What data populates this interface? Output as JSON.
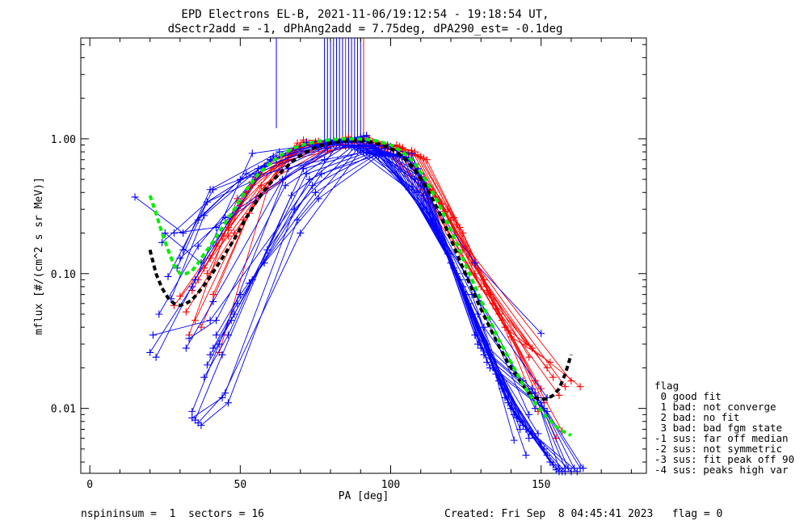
{
  "chart_data": {
    "type": "scatter",
    "title": [
      "EPD Electrons EL-B, 2021-11-06/19:12:54 - 19:18:54 UT,",
      "dSectr2add = -1, dPhAng2add = 7.75deg, dPA290_est=  -0.1deg"
    ],
    "xlabel": "PA [deg]",
    "ylabel": "mflux [#/(cm^2 s sr MeV)]",
    "xlim": [
      -3,
      185
    ],
    "ylim": [
      0.0033,
      5.6
    ],
    "yscale": "log",
    "x_ticks": [
      {
        "v": 0,
        "label": "0"
      },
      {
        "v": 50,
        "label": "50"
      },
      {
        "v": 100,
        "label": "100"
      },
      {
        "v": 150,
        "label": "150"
      }
    ],
    "y_ticks": [
      {
        "v": 0.01,
        "label": "0.01"
      },
      {
        "v": 0.1,
        "label": "0.10"
      },
      {
        "v": 1.0,
        "label": "1.00"
      }
    ],
    "colors": {
      "red": "#ff0000",
      "blue": "#0000ff",
      "green": "#00ee00",
      "black": "#000000"
    },
    "red_curves": [
      {
        "x": [
          28,
          46,
          69,
          90,
          107,
          118,
          131,
          146
        ],
        "y": [
          0.058,
          0.19,
          0.93,
          1.02,
          0.82,
          0.29,
          0.09,
          0.024
        ]
      },
      {
        "x": [
          30,
          46,
          70,
          91,
          108,
          120,
          133,
          148
        ],
        "y": [
          0.068,
          0.22,
          0.9,
          1.0,
          0.8,
          0.25,
          0.07,
          0.016
        ]
      },
      {
        "x": [
          34,
          50,
          71,
          89,
          106,
          119,
          132,
          150
        ],
        "y": [
          0.075,
          0.32,
          0.98,
          0.95,
          0.78,
          0.3,
          0.075,
          0.014
        ]
      },
      {
        "x": [
          36,
          52,
          72,
          88,
          105,
          117,
          130,
          152
        ],
        "y": [
          0.09,
          0.4,
          0.95,
          0.98,
          0.7,
          0.33,
          0.08,
          0.02
        ]
      },
      {
        "x": [
          38,
          54,
          73,
          87,
          104,
          116,
          128,
          147
        ],
        "y": [
          0.11,
          0.48,
          0.92,
          1.01,
          0.86,
          0.35,
          0.1,
          0.028
        ]
      },
      {
        "x": [
          40,
          56,
          74,
          86,
          103,
          115,
          127,
          154
        ],
        "y": [
          0.13,
          0.55,
          0.9,
          1.03,
          0.88,
          0.37,
          0.12,
          0.017
        ]
      },
      {
        "x": [
          32,
          48,
          68,
          92,
          109,
          121,
          134,
          156
        ],
        "y": [
          0.052,
          0.2,
          0.85,
          1.04,
          0.76,
          0.26,
          0.06,
          0.0125
        ]
      },
      {
        "x": [
          42,
          58,
          75,
          85,
          102,
          114,
          126,
          158
        ],
        "y": [
          0.16,
          0.63,
          0.95,
          1.0,
          0.9,
          0.4,
          0.14,
          0.0145
        ]
      },
      {
        "x": [
          44,
          60,
          76,
          84,
          101,
          113,
          125,
          160
        ],
        "y": [
          0.19,
          0.7,
          0.96,
          0.99,
          0.85,
          0.42,
          0.16,
          0.016
        ]
      },
      {
        "x": [
          35,
          51,
          67,
          93,
          110,
          122,
          135,
          151
        ],
        "y": [
          0.045,
          0.25,
          0.78,
          0.97,
          0.74,
          0.23,
          0.055,
          0.011
        ]
      },
      {
        "x": [
          37,
          53,
          66,
          94,
          111,
          123,
          136,
          149
        ],
        "y": [
          0.04,
          0.28,
          0.7,
          0.94,
          0.72,
          0.22,
          0.05,
          0.0095
        ]
      },
      {
        "x": [
          46,
          62,
          77,
          83,
          100,
          112,
          124,
          145
        ],
        "y": [
          0.21,
          0.66,
          0.88,
          0.97,
          0.83,
          0.38,
          0.15,
          0.03
        ]
      },
      {
        "x": [
          39,
          55,
          78,
          82,
          99,
          111,
          137,
          157
        ],
        "y": [
          0.1,
          0.52,
          0.9,
          0.93,
          0.8,
          0.36,
          0.045,
          0.0068
        ]
      },
      {
        "x": [
          41,
          57,
          79,
          81,
          98,
          110,
          138,
          163
        ],
        "y": [
          0.07,
          0.45,
          0.86,
          0.92,
          0.84,
          0.44,
          0.04,
          0.0145
        ]
      },
      {
        "x": [
          33,
          49,
          65,
          95,
          112,
          124,
          139,
          155
        ],
        "y": [
          0.035,
          0.36,
          0.75,
          0.91,
          0.7,
          0.2,
          0.038,
          0.006
        ]
      },
      {
        "x": [
          43,
          59,
          80,
          80,
          97,
          109,
          140,
          153
        ],
        "y": [
          0.026,
          0.42,
          0.82,
          0.9,
          0.88,
          0.5,
          0.034,
          0.022
        ]
      }
    ],
    "blue_curves": [
      {
        "x": [
          15,
          31,
          52,
          72,
          90,
          110,
          128,
          150
        ],
        "y": [
          0.37,
          0.2,
          0.55,
          0.94,
          1.03,
          0.45,
          0.12,
          0.036
        ]
      },
      {
        "x": [
          20,
          34,
          54,
          74,
          91,
          111,
          130,
          152
        ],
        "y": [
          0.026,
          0.08,
          0.78,
          0.9,
          1.05,
          0.38,
          0.06,
          0.012
        ]
      },
      {
        "x": [
          22,
          35,
          56,
          76,
          92,
          112,
          131,
          144
        ],
        "y": [
          0.024,
          0.09,
          0.6,
          0.86,
          1.06,
          0.3,
          0.04,
          0.016
        ]
      },
      {
        "x": [
          23,
          36,
          58,
          78,
          89,
          113,
          132,
          141
        ],
        "y": [
          0.05,
          0.16,
          0.62,
          0.92,
          1.0,
          0.28,
          0.03,
          0.0058
        ]
      },
      {
        "x": [
          25,
          37,
          60,
          80,
          88,
          109,
          129,
          145
        ],
        "y": [
          0.2,
          0.12,
          0.7,
          0.96,
          0.99,
          0.4,
          0.05,
          0.0045
        ]
      },
      {
        "x": [
          27,
          38,
          61,
          81,
          87,
          108,
          127,
          143
        ],
        "y": [
          0.065,
          0.27,
          0.74,
          0.97,
          0.98,
          0.5,
          0.07,
          0.007
        ]
      },
      {
        "x": [
          29,
          39,
          62,
          82,
          86,
          107,
          126,
          146
        ],
        "y": [
          0.11,
          0.34,
          0.72,
          0.95,
          0.96,
          0.44,
          0.09,
          0.009
        ]
      },
      {
        "x": [
          31,
          40,
          63,
          83,
          85,
          106,
          125,
          148
        ],
        "y": [
          0.15,
          0.42,
          0.8,
          0.94,
          0.95,
          0.42,
          0.1,
          0.01
        ]
      },
      {
        "x": [
          32,
          41,
          64,
          84,
          93,
          114,
          133,
          149
        ],
        "y": [
          0.028,
          0.062,
          0.5,
          0.9,
          0.9,
          0.25,
          0.025,
          0.0065
        ]
      },
      {
        "x": [
          33,
          42,
          65,
          85,
          94,
          115,
          134,
          150
        ],
        "y": [
          0.033,
          0.045,
          0.45,
          0.88,
          0.88,
          0.22,
          0.02,
          0.0055
        ]
      },
      {
        "x": [
          34,
          43,
          66,
          86,
          95,
          116,
          135,
          151
        ],
        "y": [
          0.0095,
          0.03,
          0.6,
          0.9,
          0.86,
          0.2,
          0.018,
          0.005
        ]
      },
      {
        "x": [
          35,
          44,
          67,
          87,
          96,
          117,
          136,
          152
        ],
        "y": [
          0.0082,
          0.025,
          0.38,
          0.87,
          0.84,
          0.18,
          0.016,
          0.0045
        ]
      },
      {
        "x": [
          36,
          45,
          68,
          88,
          97,
          118,
          137,
          153
        ],
        "y": [
          0.0078,
          0.013,
          0.3,
          0.86,
          0.82,
          0.16,
          0.014,
          0.004
        ]
      },
      {
        "x": [
          37,
          46,
          69,
          89,
          98,
          119,
          138,
          154
        ],
        "y": [
          0.0075,
          0.011,
          0.25,
          0.84,
          0.8,
          0.14,
          0.012,
          0.0038
        ]
      },
      {
        "x": [
          34,
          44,
          70,
          90,
          99,
          120,
          139,
          155
        ],
        "y": [
          0.0085,
          0.012,
          0.2,
          0.82,
          0.79,
          0.12,
          0.011,
          0.0035
        ]
      },
      {
        "x": [
          38,
          46,
          71,
          91,
          100,
          121,
          140,
          156
        ],
        "y": [
          0.017,
          0.035,
          0.6,
          0.8,
          0.78,
          0.11,
          0.01,
          0.0034
        ]
      },
      {
        "x": [
          39,
          47,
          72,
          92,
          101,
          122,
          141,
          157
        ],
        "y": [
          0.021,
          0.045,
          0.55,
          0.79,
          0.77,
          0.1,
          0.009,
          0.0034
        ]
      },
      {
        "x": [
          40,
          48,
          73,
          93,
          102,
          123,
          142,
          158
        ],
        "y": [
          0.025,
          0.05,
          0.5,
          0.78,
          0.76,
          0.09,
          0.0085,
          0.0034
        ]
      },
      {
        "x": [
          41,
          49,
          74,
          94,
          103,
          124,
          143,
          160
        ],
        "y": [
          0.028,
          0.06,
          0.45,
          0.77,
          0.75,
          0.08,
          0.008,
          0.0034
        ]
      },
      {
        "x": [
          42,
          50,
          75,
          95,
          104,
          125,
          144,
          162
        ],
        "y": [
          0.035,
          0.07,
          0.4,
          0.76,
          0.74,
          0.07,
          0.0075,
          0.0034
        ]
      },
      {
        "x": [
          53,
          58,
          76,
          96,
          105,
          126,
          145,
          146
        ],
        "y": [
          0.085,
          0.12,
          0.36,
          0.75,
          0.73,
          0.06,
          0.007,
          0.006
        ]
      },
      {
        "x": [
          54,
          59,
          77,
          97,
          106,
          127,
          146,
          147
        ],
        "y": [
          0.09,
          0.15,
          0.55,
          0.78,
          0.72,
          0.05,
          0.0068,
          0.0064
        ]
      },
      {
        "x": [
          36,
          50,
          78,
          98,
          107,
          128,
          147,
          158
        ],
        "y": [
          0.25,
          0.5,
          0.7,
          0.85,
          0.78,
          0.035,
          0.014,
          0.0036
        ]
      },
      {
        "x": [
          30,
          45,
          79,
          99,
          108,
          129,
          148,
          156
        ],
        "y": [
          0.13,
          0.26,
          0.85,
          0.9,
          0.65,
          0.03,
          0.013,
          0.0036
        ]
      },
      {
        "x": [
          26,
          41,
          80,
          100,
          109,
          130,
          149,
          159
        ],
        "y": [
          0.095,
          0.42,
          0.9,
          0.88,
          0.6,
          0.028,
          0.012,
          0.0036
        ]
      },
      {
        "x": [
          24,
          39,
          81,
          92,
          110,
          131,
          150,
          161
        ],
        "y": [
          0.17,
          0.34,
          0.92,
          0.95,
          0.55,
          0.025,
          0.011,
          0.0036
        ]
      },
      {
        "x": [
          28,
          42,
          82,
          91,
          111,
          132,
          151,
          163
        ],
        "y": [
          0.2,
          0.22,
          0.93,
          0.97,
          0.5,
          0.022,
          0.01,
          0.0036
        ]
      },
      {
        "x": [
          21,
          40,
          83,
          90,
          112,
          133,
          152,
          164
        ],
        "y": [
          0.035,
          0.045,
          0.94,
          0.96,
          0.45,
          0.02,
          0.0095,
          0.0036
        ]
      }
    ],
    "green_fit": {
      "x": [
        20,
        22,
        24,
        26,
        28,
        30,
        32,
        34,
        36,
        38,
        40,
        44,
        48,
        52,
        56,
        60,
        64,
        68,
        72,
        76,
        80,
        84,
        88,
        92,
        96,
        100,
        104,
        108,
        112,
        116,
        120,
        124,
        128,
        132,
        136,
        140,
        144,
        148,
        152,
        156,
        160
      ],
      "y": [
        0.38,
        0.28,
        0.2,
        0.15,
        0.115,
        0.1,
        0.1,
        0.105,
        0.12,
        0.14,
        0.16,
        0.22,
        0.3,
        0.42,
        0.55,
        0.66,
        0.77,
        0.86,
        0.92,
        0.96,
        0.985,
        1.0,
        1.0,
        0.99,
        0.96,
        0.9,
        0.8,
        0.66,
        0.48,
        0.33,
        0.21,
        0.13,
        0.08,
        0.05,
        0.032,
        0.022,
        0.015,
        0.011,
        0.0085,
        0.007,
        0.0063
      ]
    },
    "black_fit": {
      "x": [
        20,
        22,
        24,
        26,
        28,
        30,
        32,
        34,
        36,
        38,
        40,
        44,
        48,
        52,
        56,
        60,
        64,
        68,
        72,
        76,
        80,
        84,
        88,
        92,
        96,
        100,
        104,
        108,
        112,
        116,
        120,
        124,
        128,
        132,
        136,
        140,
        144,
        146,
        148,
        150,
        152,
        154,
        156,
        158,
        160
      ],
      "y": [
        0.15,
        0.1,
        0.078,
        0.066,
        0.06,
        0.058,
        0.06,
        0.064,
        0.072,
        0.082,
        0.095,
        0.13,
        0.18,
        0.26,
        0.36,
        0.47,
        0.58,
        0.7,
        0.8,
        0.88,
        0.93,
        0.96,
        0.97,
        0.96,
        0.92,
        0.85,
        0.74,
        0.59,
        0.43,
        0.29,
        0.18,
        0.11,
        0.068,
        0.044,
        0.029,
        0.02,
        0.0148,
        0.013,
        0.012,
        0.0117,
        0.0118,
        0.0125,
        0.014,
        0.018,
        0.025
      ]
    },
    "top_lines": {
      "x": [
        62,
        78,
        79,
        80,
        81,
        82,
        83,
        84,
        85,
        86,
        87,
        88,
        89,
        90,
        91
      ],
      "y_bottom": [
        1.2,
        0.88,
        0.88,
        0.88,
        0.88,
        0.88,
        0.88,
        0.88,
        0.88,
        0.88,
        0.88,
        0.88,
        0.88,
        0.88,
        0.88
      ],
      "colors": [
        "blue",
        "blue",
        "blue",
        "blue",
        "blue",
        "blue",
        "blue",
        "blue",
        "red",
        "blue",
        "blue",
        "blue",
        "blue",
        "blue",
        "red"
      ]
    },
    "legend": {
      "title": "flag",
      "entries": [
        " 0 good fit",
        " 1 bad: not converge",
        " 2 bad: no fit",
        " 3 bad: bad fgm state",
        "-1 sus: far off median",
        "-2 sus: not symmetric",
        "-3 sus: fit peak off 90",
        "-4 sus: peaks high var"
      ]
    }
  },
  "footer": {
    "left": "nspininsum =  1  sectors = 16",
    "right": "Created: Fri Sep  8 04:45:41 2023   flag = 0"
  }
}
